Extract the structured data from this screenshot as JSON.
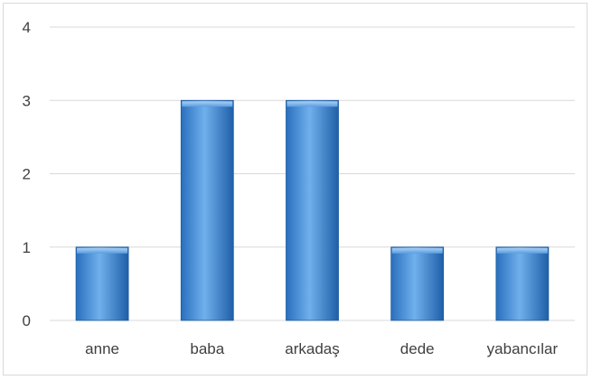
{
  "chart_data": {
    "type": "bar",
    "categories": [
      "anne",
      "baba",
      "arkadaş",
      "dede",
      "yabancılar"
    ],
    "values": [
      1,
      3,
      3,
      1,
      1
    ],
    "title": "",
    "xlabel": "",
    "ylabel": "",
    "ylim": [
      0,
      4
    ],
    "yticks": [
      "0",
      "1",
      "2",
      "3",
      "4"
    ],
    "grid": true,
    "legend": "none"
  },
  "colors": {
    "bar_light": "#7fb6ea",
    "bar_mid": "#3f86d3",
    "bar_dark": "#1f5fa8",
    "gridline": "#d9d9d9"
  }
}
